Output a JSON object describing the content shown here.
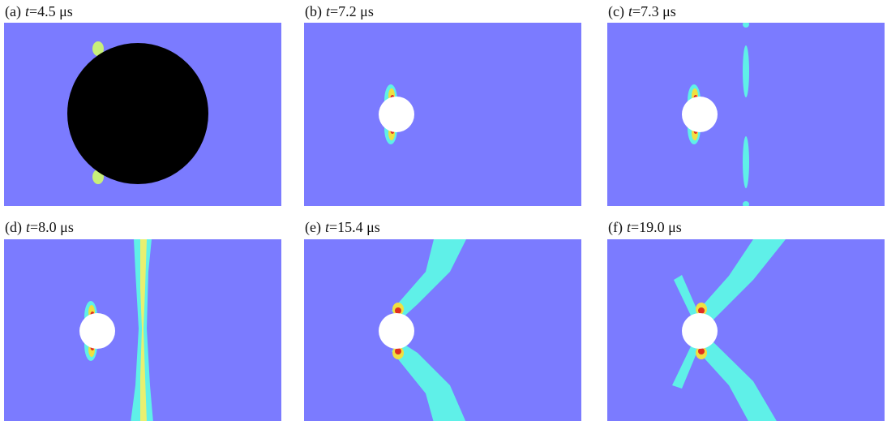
{
  "panels": [
    {
      "label": "(a)",
      "var": "t",
      "time": "=4.5 μs"
    },
    {
      "label": "(b)",
      "var": "t",
      "time": "=7.2 μs"
    },
    {
      "label": "(c)",
      "var": "t",
      "time": "=7.3 μs"
    },
    {
      "label": "(d)",
      "var": "t",
      "time": "=8.0 μs"
    },
    {
      "label": "(e)",
      "var": "t",
      "time": "=15.4 μs"
    },
    {
      "label": "(f)",
      "var": "t",
      "time": "=19.0 μs"
    }
  ]
}
